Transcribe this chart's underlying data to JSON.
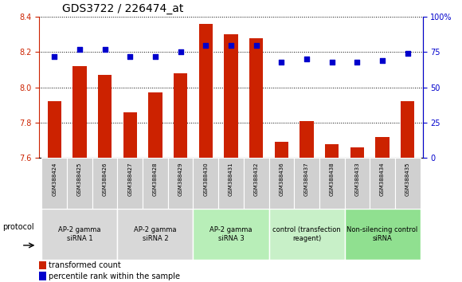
{
  "title": "GDS3722 / 226474_at",
  "samples": [
    "GSM388424",
    "GSM388425",
    "GSM388426",
    "GSM388427",
    "GSM388428",
    "GSM388429",
    "GSM388430",
    "GSM388431",
    "GSM388432",
    "GSM388436",
    "GSM388437",
    "GSM388438",
    "GSM388433",
    "GSM388434",
    "GSM388435"
  ],
  "bar_values": [
    7.92,
    8.12,
    8.07,
    7.86,
    7.97,
    8.08,
    8.36,
    8.3,
    8.28,
    7.69,
    7.81,
    7.68,
    7.66,
    7.72,
    7.92
  ],
  "dot_values": [
    72,
    77,
    77,
    72,
    72,
    75,
    80,
    80,
    80,
    68,
    70,
    68,
    68,
    69,
    74
  ],
  "ylim_left": [
    7.6,
    8.4
  ],
  "ylim_right": [
    0,
    100
  ],
  "yticks_left": [
    7.6,
    7.8,
    8.0,
    8.2,
    8.4
  ],
  "yticks_right": [
    0,
    25,
    50,
    75,
    100
  ],
  "ytick_labels_right": [
    "0",
    "25",
    "50",
    "75",
    "100%"
  ],
  "groups": [
    {
      "label": "AP-2 gamma\nsiRNA 1",
      "start": 0,
      "end": 3,
      "color": "#d8d8d8"
    },
    {
      "label": "AP-2 gamma\nsiRNA 2",
      "start": 3,
      "end": 6,
      "color": "#d8d8d8"
    },
    {
      "label": "AP-2 gamma\nsiRNA 3",
      "start": 6,
      "end": 9,
      "color": "#b8eeb8"
    },
    {
      "label": "control (transfection\nreagent)",
      "start": 9,
      "end": 12,
      "color": "#c8f0c8"
    },
    {
      "label": "Non-silencing control\nsiRNA",
      "start": 12,
      "end": 15,
      "color": "#90e090"
    }
  ],
  "bar_color": "#cc2200",
  "dot_color": "#0000cc",
  "bar_width": 0.55,
  "protocol_label": "protocol",
  "legend_bar_label": "transformed count",
  "legend_dot_label": "percentile rank within the sample",
  "title_fontsize": 10,
  "tick_fontsize": 7,
  "label_color_left": "#cc2200",
  "label_color_right": "#0000cc",
  "sample_box_color": "#d0d0d0"
}
